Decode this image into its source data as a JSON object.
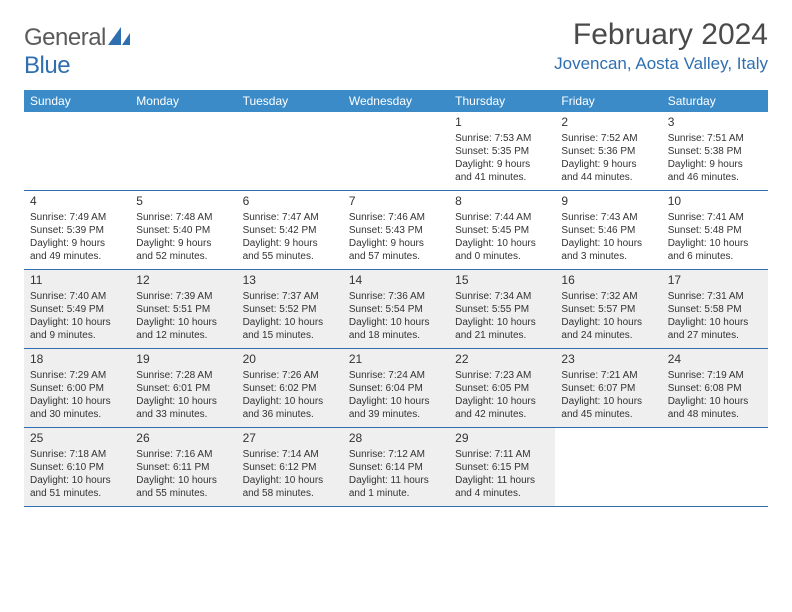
{
  "logo": {
    "text1": "General",
    "text2": "Blue"
  },
  "title": "February 2024",
  "location": "Jovencan, Aosta Valley, Italy",
  "colors": {
    "header_bg": "#3b8bc9",
    "header_text": "#ffffff",
    "accent": "#2f6fb0",
    "shaded_bg": "#efefef",
    "body_text": "#333333",
    "muted_text": "#5a5a5a"
  },
  "weekdays": [
    "Sunday",
    "Monday",
    "Tuesday",
    "Wednesday",
    "Thursday",
    "Friday",
    "Saturday"
  ],
  "weeks": [
    [
      {
        "blank": true
      },
      {
        "blank": true
      },
      {
        "blank": true
      },
      {
        "blank": true
      },
      {
        "num": "1",
        "sunrise": "Sunrise: 7:53 AM",
        "sunset": "Sunset: 5:35 PM",
        "daylight1": "Daylight: 9 hours",
        "daylight2": "and 41 minutes."
      },
      {
        "num": "2",
        "sunrise": "Sunrise: 7:52 AM",
        "sunset": "Sunset: 5:36 PM",
        "daylight1": "Daylight: 9 hours",
        "daylight2": "and 44 minutes."
      },
      {
        "num": "3",
        "sunrise": "Sunrise: 7:51 AM",
        "sunset": "Sunset: 5:38 PM",
        "daylight1": "Daylight: 9 hours",
        "daylight2": "and 46 minutes."
      }
    ],
    [
      {
        "num": "4",
        "sunrise": "Sunrise: 7:49 AM",
        "sunset": "Sunset: 5:39 PM",
        "daylight1": "Daylight: 9 hours",
        "daylight2": "and 49 minutes."
      },
      {
        "num": "5",
        "sunrise": "Sunrise: 7:48 AM",
        "sunset": "Sunset: 5:40 PM",
        "daylight1": "Daylight: 9 hours",
        "daylight2": "and 52 minutes."
      },
      {
        "num": "6",
        "sunrise": "Sunrise: 7:47 AM",
        "sunset": "Sunset: 5:42 PM",
        "daylight1": "Daylight: 9 hours",
        "daylight2": "and 55 minutes."
      },
      {
        "num": "7",
        "sunrise": "Sunrise: 7:46 AM",
        "sunset": "Sunset: 5:43 PM",
        "daylight1": "Daylight: 9 hours",
        "daylight2": "and 57 minutes."
      },
      {
        "num": "8",
        "sunrise": "Sunrise: 7:44 AM",
        "sunset": "Sunset: 5:45 PM",
        "daylight1": "Daylight: 10 hours",
        "daylight2": "and 0 minutes."
      },
      {
        "num": "9",
        "sunrise": "Sunrise: 7:43 AM",
        "sunset": "Sunset: 5:46 PM",
        "daylight1": "Daylight: 10 hours",
        "daylight2": "and 3 minutes."
      },
      {
        "num": "10",
        "sunrise": "Sunrise: 7:41 AM",
        "sunset": "Sunset: 5:48 PM",
        "daylight1": "Daylight: 10 hours",
        "daylight2": "and 6 minutes."
      }
    ],
    [
      {
        "num": "11",
        "shaded": true,
        "sunrise": "Sunrise: 7:40 AM",
        "sunset": "Sunset: 5:49 PM",
        "daylight1": "Daylight: 10 hours",
        "daylight2": "and 9 minutes."
      },
      {
        "num": "12",
        "shaded": true,
        "sunrise": "Sunrise: 7:39 AM",
        "sunset": "Sunset: 5:51 PM",
        "daylight1": "Daylight: 10 hours",
        "daylight2": "and 12 minutes."
      },
      {
        "num": "13",
        "shaded": true,
        "sunrise": "Sunrise: 7:37 AM",
        "sunset": "Sunset: 5:52 PM",
        "daylight1": "Daylight: 10 hours",
        "daylight2": "and 15 minutes."
      },
      {
        "num": "14",
        "shaded": true,
        "sunrise": "Sunrise: 7:36 AM",
        "sunset": "Sunset: 5:54 PM",
        "daylight1": "Daylight: 10 hours",
        "daylight2": "and 18 minutes."
      },
      {
        "num": "15",
        "shaded": true,
        "sunrise": "Sunrise: 7:34 AM",
        "sunset": "Sunset: 5:55 PM",
        "daylight1": "Daylight: 10 hours",
        "daylight2": "and 21 minutes."
      },
      {
        "num": "16",
        "shaded": true,
        "sunrise": "Sunrise: 7:32 AM",
        "sunset": "Sunset: 5:57 PM",
        "daylight1": "Daylight: 10 hours",
        "daylight2": "and 24 minutes."
      },
      {
        "num": "17",
        "shaded": true,
        "sunrise": "Sunrise: 7:31 AM",
        "sunset": "Sunset: 5:58 PM",
        "daylight1": "Daylight: 10 hours",
        "daylight2": "and 27 minutes."
      }
    ],
    [
      {
        "num": "18",
        "shaded": true,
        "sunrise": "Sunrise: 7:29 AM",
        "sunset": "Sunset: 6:00 PM",
        "daylight1": "Daylight: 10 hours",
        "daylight2": "and 30 minutes."
      },
      {
        "num": "19",
        "shaded": true,
        "sunrise": "Sunrise: 7:28 AM",
        "sunset": "Sunset: 6:01 PM",
        "daylight1": "Daylight: 10 hours",
        "daylight2": "and 33 minutes."
      },
      {
        "num": "20",
        "shaded": true,
        "sunrise": "Sunrise: 7:26 AM",
        "sunset": "Sunset: 6:02 PM",
        "daylight1": "Daylight: 10 hours",
        "daylight2": "and 36 minutes."
      },
      {
        "num": "21",
        "shaded": true,
        "sunrise": "Sunrise: 7:24 AM",
        "sunset": "Sunset: 6:04 PM",
        "daylight1": "Daylight: 10 hours",
        "daylight2": "and 39 minutes."
      },
      {
        "num": "22",
        "shaded": true,
        "sunrise": "Sunrise: 7:23 AM",
        "sunset": "Sunset: 6:05 PM",
        "daylight1": "Daylight: 10 hours",
        "daylight2": "and 42 minutes."
      },
      {
        "num": "23",
        "shaded": true,
        "sunrise": "Sunrise: 7:21 AM",
        "sunset": "Sunset: 6:07 PM",
        "daylight1": "Daylight: 10 hours",
        "daylight2": "and 45 minutes."
      },
      {
        "num": "24",
        "shaded": true,
        "sunrise": "Sunrise: 7:19 AM",
        "sunset": "Sunset: 6:08 PM",
        "daylight1": "Daylight: 10 hours",
        "daylight2": "and 48 minutes."
      }
    ],
    [
      {
        "num": "25",
        "shaded": true,
        "sunrise": "Sunrise: 7:18 AM",
        "sunset": "Sunset: 6:10 PM",
        "daylight1": "Daylight: 10 hours",
        "daylight2": "and 51 minutes."
      },
      {
        "num": "26",
        "shaded": true,
        "sunrise": "Sunrise: 7:16 AM",
        "sunset": "Sunset: 6:11 PM",
        "daylight1": "Daylight: 10 hours",
        "daylight2": "and 55 minutes."
      },
      {
        "num": "27",
        "shaded": true,
        "sunrise": "Sunrise: 7:14 AM",
        "sunset": "Sunset: 6:12 PM",
        "daylight1": "Daylight: 10 hours",
        "daylight2": "and 58 minutes."
      },
      {
        "num": "28",
        "shaded": true,
        "sunrise": "Sunrise: 7:12 AM",
        "sunset": "Sunset: 6:14 PM",
        "daylight1": "Daylight: 11 hours",
        "daylight2": "and 1 minute."
      },
      {
        "num": "29",
        "shaded": true,
        "sunrise": "Sunrise: 7:11 AM",
        "sunset": "Sunset: 6:15 PM",
        "daylight1": "Daylight: 11 hours",
        "daylight2": "and 4 minutes."
      },
      {
        "blank": true
      },
      {
        "blank": true
      }
    ]
  ]
}
